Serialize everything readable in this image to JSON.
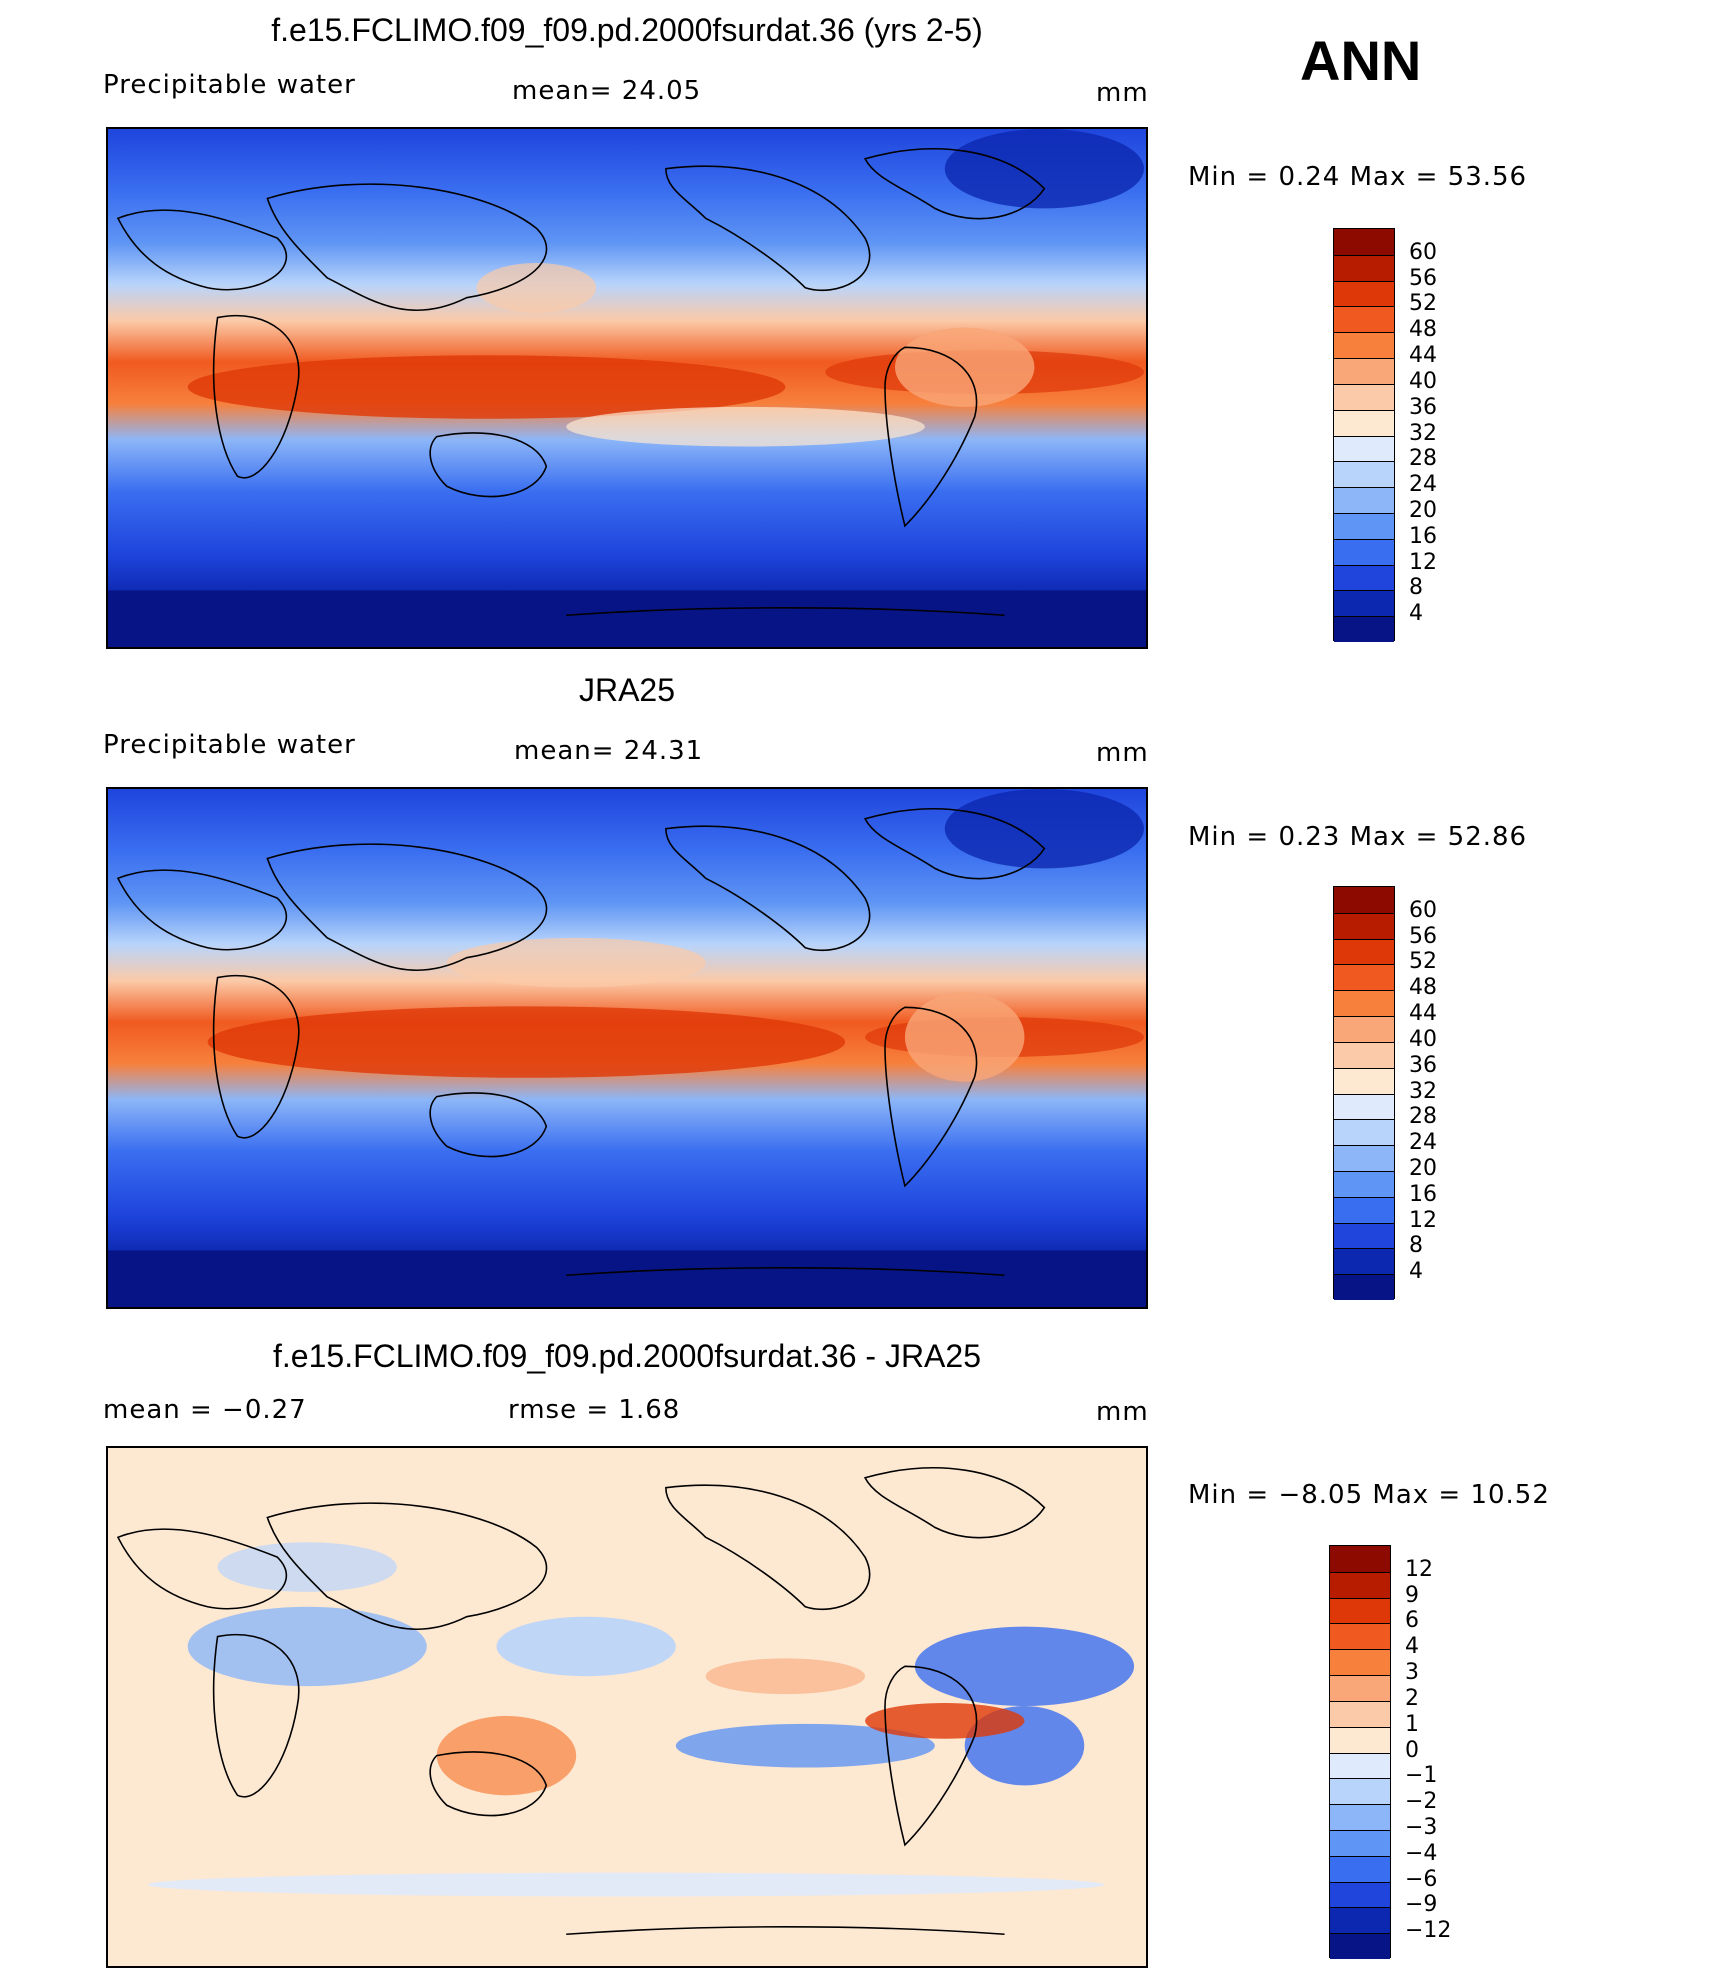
{
  "header": {
    "season": "ANN"
  },
  "panels": [
    {
      "title": "f.e15.FCLIMO.f09_f09.pd.2000fsurdat.36 (yrs 2-5)",
      "left_label": "Precipitable  water",
      "center_label": "mean=   24.05",
      "units": "mm",
      "range_text": "Min  =     0.24  Max  =     53.56",
      "levels": [
        "60",
        "56",
        "52",
        "48",
        "44",
        "40",
        "36",
        "32",
        "28",
        "24",
        "20",
        "16",
        "12",
        "8",
        "4"
      ],
      "colors": [
        "#8c0a00",
        "#b81c00",
        "#de3808",
        "#f05a20",
        "#f7803c",
        "#f9a678",
        "#fbcaa8",
        "#fde8d2",
        "#dfeafc",
        "#b8d4fb",
        "#8cb6f8",
        "#5f95f4",
        "#3a6ef0",
        "#1f45dd",
        "#0d28b0",
        "#061485"
      ]
    },
    {
      "title": "JRA25",
      "left_label": "Precipitable  water",
      "center_label": "mean=   24.31",
      "units": "mm",
      "range_text": "Min  =     0.23  Max  =     52.86",
      "levels": [
        "60",
        "56",
        "52",
        "48",
        "44",
        "40",
        "36",
        "32",
        "28",
        "24",
        "20",
        "16",
        "12",
        "8",
        "4"
      ],
      "colors": [
        "#8c0a00",
        "#b81c00",
        "#de3808",
        "#f05a20",
        "#f7803c",
        "#f9a678",
        "#fbcaa8",
        "#fde8d2",
        "#dfeafc",
        "#b8d4fb",
        "#8cb6f8",
        "#5f95f4",
        "#3a6ef0",
        "#1f45dd",
        "#0d28b0",
        "#061485"
      ]
    },
    {
      "title": "f.e15.FCLIMO.f09_f09.pd.2000fsurdat.36 - JRA25",
      "left_label": "mean  =    −0.27",
      "center_label": "rmse  =     1.68",
      "units": "mm",
      "range_text": "Min  =   −8.05  Max  =    10.52",
      "levels": [
        "12",
        "9",
        "6",
        "4",
        "3",
        "2",
        "1",
        "0",
        "−1",
        "−2",
        "−3",
        "−4",
        "−6",
        "−9",
        "−12"
      ],
      "colors": [
        "#8c0a00",
        "#b81c00",
        "#de3808",
        "#f05a20",
        "#f7803c",
        "#f9a678",
        "#fbcaa8",
        "#fde8d2",
        "#dfeafc",
        "#b8d4fb",
        "#8cb6f8",
        "#5f95f4",
        "#3a6ef0",
        "#1f45dd",
        "#0d28b0",
        "#061485"
      ]
    }
  ]
}
